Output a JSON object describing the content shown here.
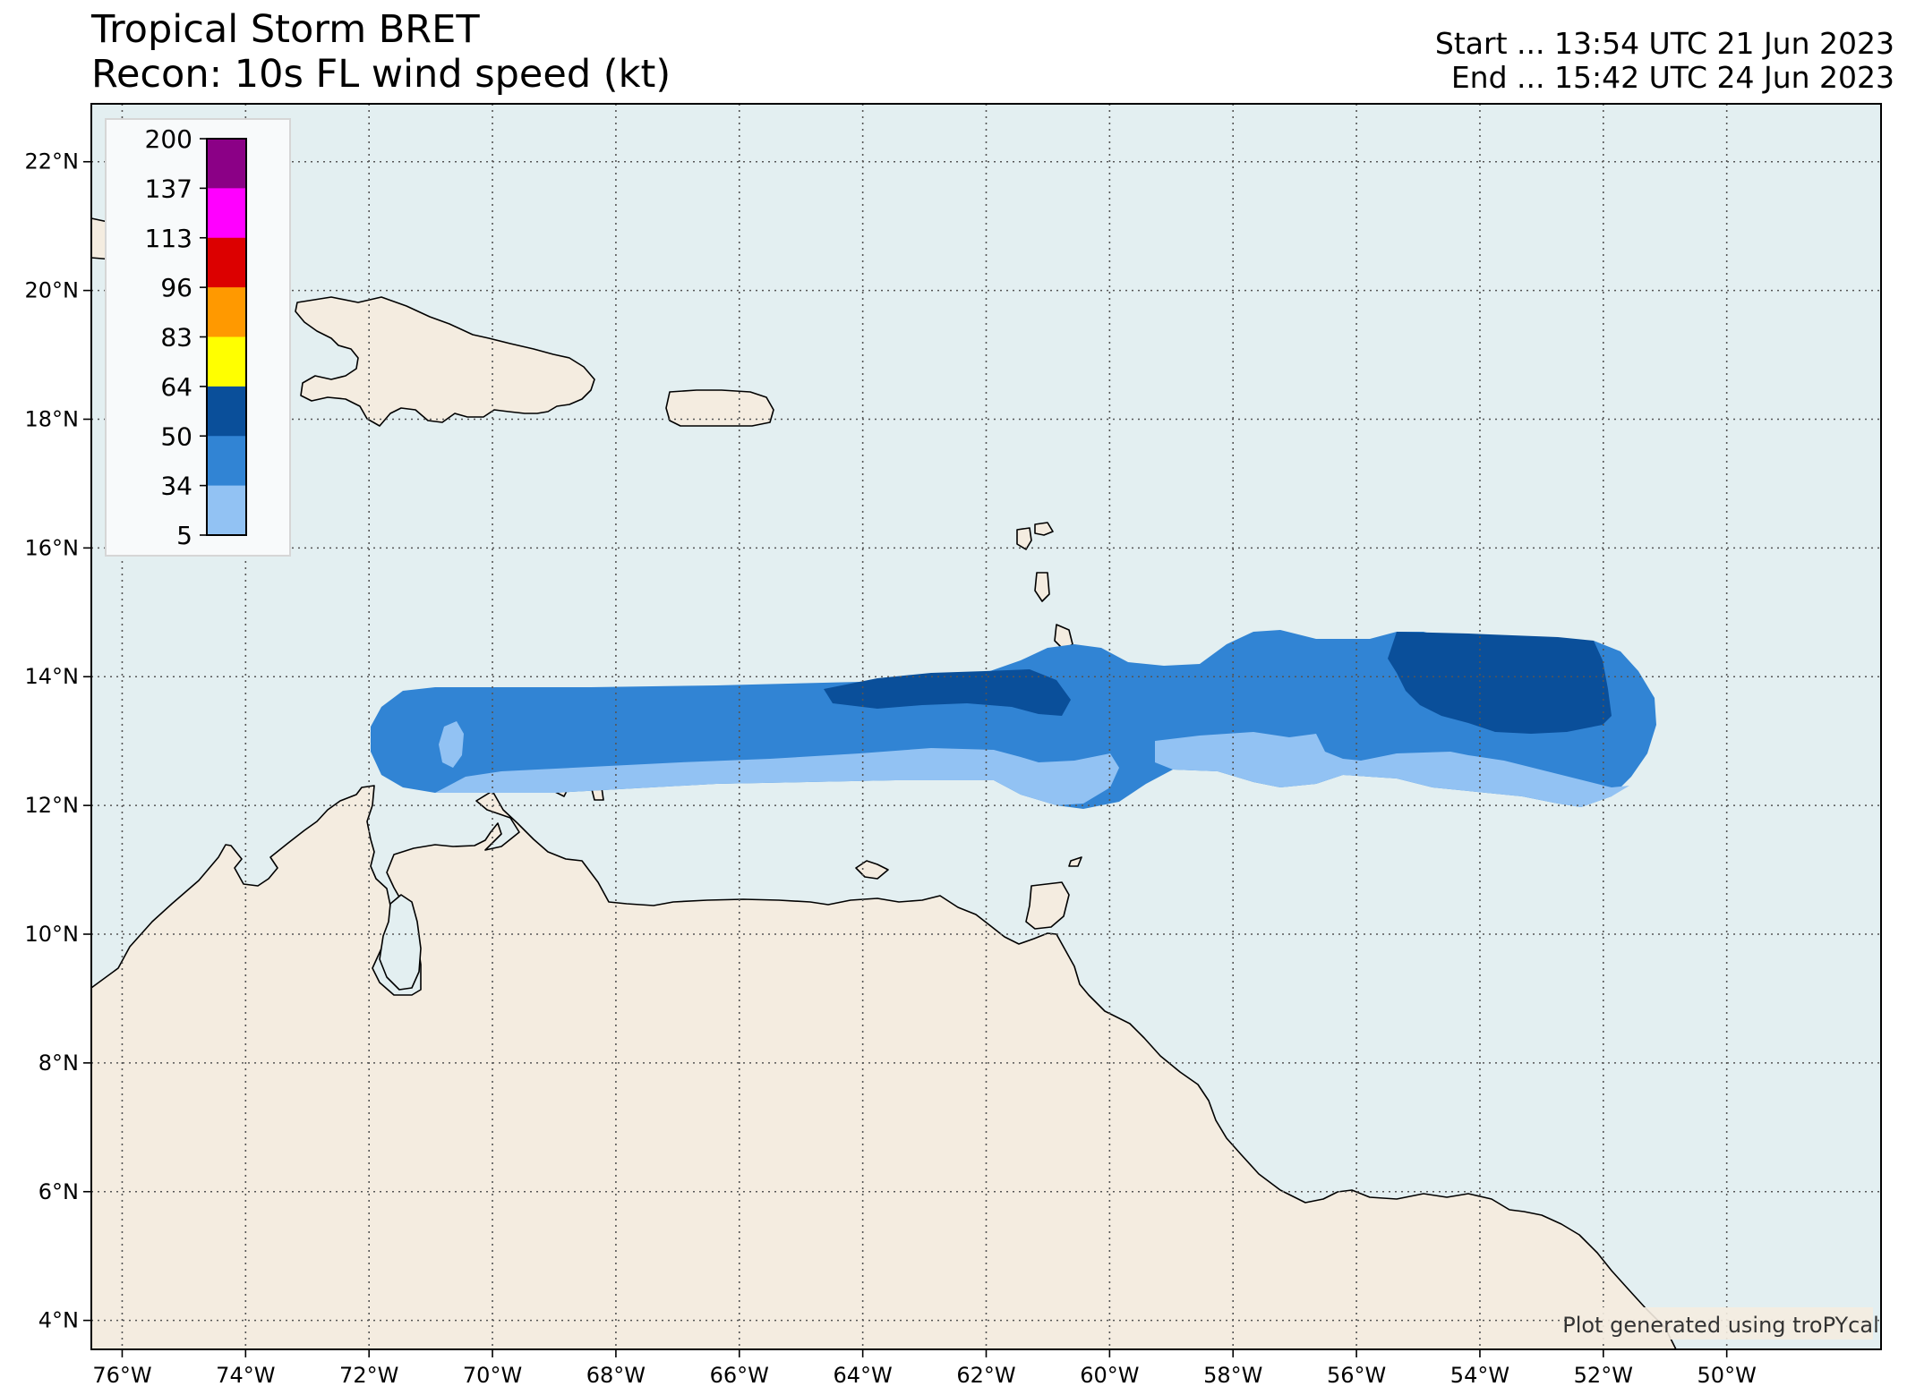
{
  "title": {
    "line1": "Tropical Storm BRET",
    "line2": "Recon: 10s FL wind speed (kt)"
  },
  "times": {
    "start": "Start ... 13:54 UTC 21 Jun 2023",
    "end": "End ... 15:42 UTC 24 Jun 2023"
  },
  "map": {
    "lon_range": [
      -76.5,
      -47.5
    ],
    "lat_range": [
      3.55,
      22.9
    ],
    "lon_ticks": [
      {
        "value": -76,
        "label": "76°W"
      },
      {
        "value": -74,
        "label": "74°W"
      },
      {
        "value": -72,
        "label": "72°W"
      },
      {
        "value": -70,
        "label": "70°W"
      },
      {
        "value": -68,
        "label": "68°W"
      },
      {
        "value": -66,
        "label": "66°W"
      },
      {
        "value": -64,
        "label": "64°W"
      },
      {
        "value": -62,
        "label": "62°W"
      },
      {
        "value": -60,
        "label": "60°W"
      },
      {
        "value": -58,
        "label": "58°W"
      },
      {
        "value": -56,
        "label": "56°W"
      },
      {
        "value": -54,
        "label": "54°W"
      },
      {
        "value": -52,
        "label": "52°W"
      },
      {
        "value": -50,
        "label": "50°W"
      }
    ],
    "lat_ticks": [
      {
        "value": 4,
        "label": "4°N"
      },
      {
        "value": 6,
        "label": "6°N"
      },
      {
        "value": 8,
        "label": "8°N"
      },
      {
        "value": 10,
        "label": "10°N"
      },
      {
        "value": 12,
        "label": "12°N"
      },
      {
        "value": 14,
        "label": "14°N"
      },
      {
        "value": 16,
        "label": "16°N"
      },
      {
        "value": 18,
        "label": "18°N"
      },
      {
        "value": 20,
        "label": "20°N"
      },
      {
        "value": 22,
        "label": "22°N"
      }
    ],
    "ocean_color": "#e3eff1",
    "land_color": "#f4ece0",
    "grid": "dotted"
  },
  "colorbar": {
    "labels": [
      "200",
      "137",
      "113",
      "96",
      "83",
      "64",
      "50",
      "34",
      "5"
    ],
    "colors": [
      "#8b0086",
      "#ff00ff",
      "#dc0000",
      "#ff9900",
      "#ffff00",
      "#0a4f9a",
      "#3184d4",
      "#92c2f3"
    ]
  },
  "swath": {
    "colors": {
      "light": "#92c2f3",
      "medium": "#3184d4",
      "dark": "#0a4f9a"
    }
  },
  "credit": "Plot generated using troPYcal"
}
